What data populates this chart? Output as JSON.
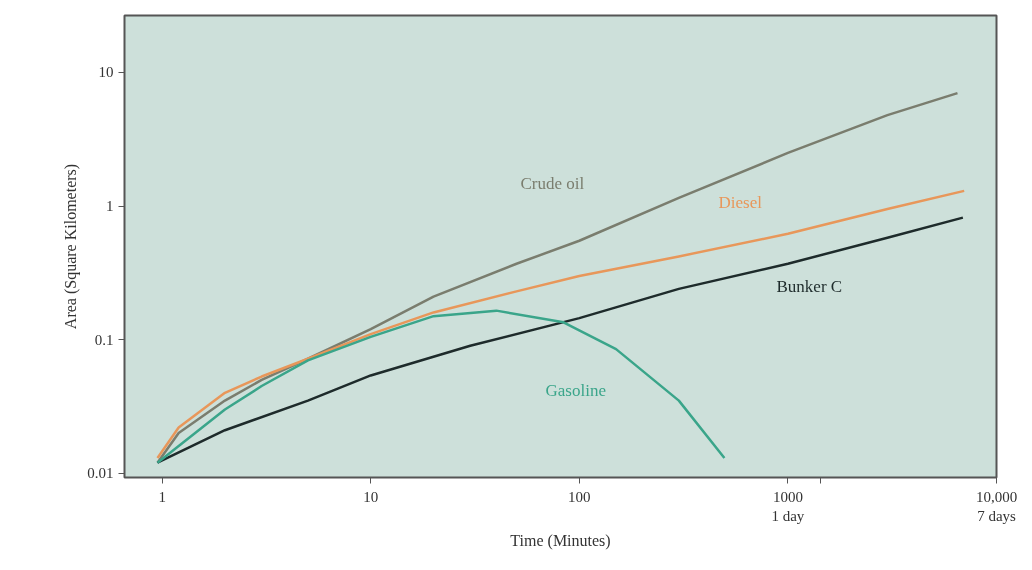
{
  "chart_data": {
    "type": "line",
    "xlabel": "Time (Minutes)",
    "ylabel": "Area (Square Kilometers)",
    "log": "xy",
    "xlim": [
      0.66,
      10000
    ],
    "ylim": [
      0.0093,
      26.7
    ],
    "xticks": [
      1,
      10,
      100,
      {
        "value": 1000,
        "label": "1000\n1 day"
      },
      {
        "value": 1440,
        "label": null
      },
      {
        "value": 10000,
        "label": "10,000\n7 days"
      }
    ],
    "yticks": [
      0.01,
      0.1,
      1,
      10
    ],
    "grid": false,
    "line_style": "solid",
    "marker": "none",
    "series": [
      {
        "name": "Crude oil",
        "color": "#7a7d6e",
        "x": [
          0.95,
          1.2,
          2,
          3,
          5,
          10,
          20,
          50,
          100,
          300,
          1000,
          3000,
          6500
        ],
        "values": [
          0.012,
          0.02,
          0.035,
          0.05,
          0.072,
          0.12,
          0.21,
          0.37,
          0.55,
          1.15,
          2.5,
          4.8,
          7.0
        ]
      },
      {
        "name": "Diesel",
        "color": "#e8975a",
        "x": [
          0.95,
          1.2,
          2,
          3,
          5,
          10,
          20,
          50,
          100,
          300,
          1000,
          3000,
          7000
        ],
        "values": [
          0.013,
          0.022,
          0.04,
          0.053,
          0.072,
          0.11,
          0.16,
          0.23,
          0.3,
          0.42,
          0.62,
          0.95,
          1.3
        ]
      },
      {
        "name": "Bunker C",
        "color": "#1e2b2b",
        "x": [
          0.95,
          2,
          5,
          10,
          30,
          100,
          300,
          1000,
          3000,
          6900
        ],
        "values": [
          0.012,
          0.021,
          0.035,
          0.054,
          0.09,
          0.145,
          0.24,
          0.37,
          0.58,
          0.82
        ]
      },
      {
        "name": "Gasoline",
        "color": "#3aa58a",
        "x": [
          0.95,
          2,
          3,
          5,
          10,
          20,
          40,
          84,
          150,
          300,
          496
        ],
        "values": [
          0.012,
          0.03,
          0.045,
          0.07,
          0.105,
          0.15,
          0.165,
          0.135,
          0.085,
          0.035,
          0.013
        ]
      }
    ]
  }
}
